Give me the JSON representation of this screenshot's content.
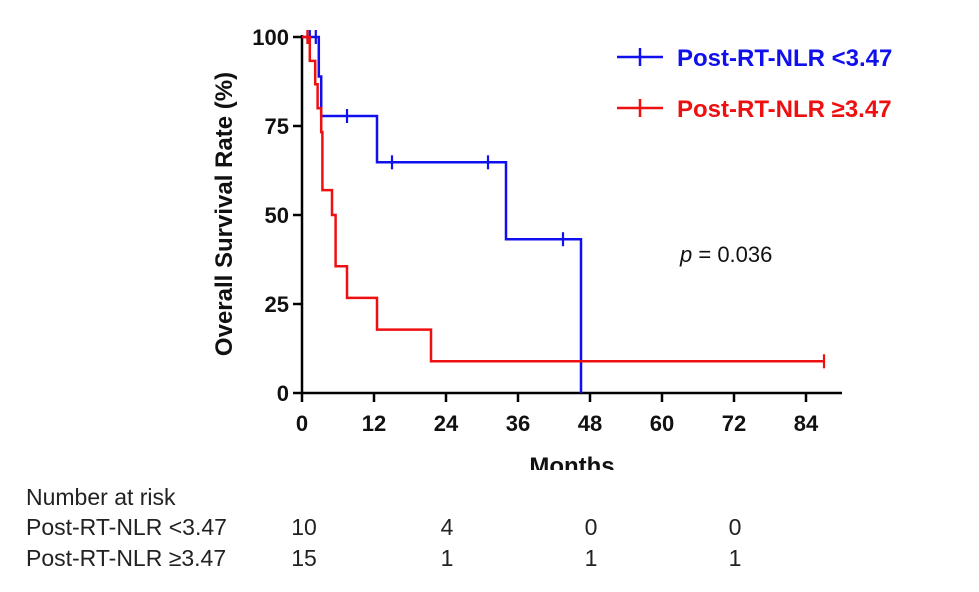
{
  "chart_data": {
    "type": "line",
    "subtype": "kaplan-meier",
    "xlabel": "Months",
    "ylabel": "Overall Survival Rate (%)",
    "xlim": [
      0,
      90
    ],
    "ylim": [
      0,
      100
    ],
    "xticks": [
      0,
      12,
      24,
      36,
      48,
      60,
      72,
      84
    ],
    "yticks": [
      0,
      25,
      50,
      75,
      100
    ],
    "legend_position": "top-right",
    "annotation": {
      "italic": "p",
      "rest": " = 0.036"
    },
    "series": [
      {
        "name": "Post-RT-NLR <3.47",
        "color": "#1010ee",
        "steps": [
          [
            0,
            100
          ],
          [
            2.8,
            100
          ],
          [
            2.8,
            88.9
          ],
          [
            3.2,
            88.9
          ],
          [
            3.2,
            77.8
          ],
          [
            12.5,
            77.8
          ],
          [
            12.5,
            64.8
          ],
          [
            34,
            64.8
          ],
          [
            34,
            43.2
          ],
          [
            46.5,
            43.2
          ],
          [
            46.5,
            0
          ]
        ],
        "censors": [
          [
            1.3,
            100
          ],
          [
            2.3,
            100
          ],
          [
            7.5,
            77.8
          ],
          [
            15,
            64.8
          ],
          [
            31,
            64.8
          ],
          [
            43.5,
            43.2
          ]
        ]
      },
      {
        "name": "Post-RT-NLR ≥3.47",
        "color": "#ee1010",
        "steps": [
          [
            0,
            100
          ],
          [
            1.3,
            100
          ],
          [
            1.3,
            93.3
          ],
          [
            2.2,
            93.3
          ],
          [
            2.2,
            86.7
          ],
          [
            2.6,
            86.7
          ],
          [
            2.6,
            80
          ],
          [
            3.2,
            80
          ],
          [
            3.2,
            73.3
          ],
          [
            3.4,
            73.3
          ],
          [
            3.4,
            57
          ],
          [
            5,
            57
          ],
          [
            5,
            50
          ],
          [
            5.6,
            50
          ],
          [
            5.6,
            35.6
          ],
          [
            7.5,
            35.6
          ],
          [
            7.5,
            26.7
          ],
          [
            12.5,
            26.7
          ],
          [
            12.5,
            17.8
          ],
          [
            21.5,
            17.8
          ],
          [
            21.5,
            8.9
          ],
          [
            87,
            8.9
          ]
        ],
        "censors": [
          [
            0.9,
            100
          ],
          [
            87,
            8.9
          ]
        ]
      }
    ],
    "risk_table": {
      "title": "Number at risk",
      "times": [
        0,
        24,
        48,
        72
      ],
      "rows": [
        {
          "label": "Post-RT-NLR <3.47",
          "values": [
            "10",
            "4",
            "0",
            "0"
          ]
        },
        {
          "label": "Post-RT-NLR ≥3.47",
          "values": [
            "15",
            "1",
            "1",
            "1"
          ]
        }
      ]
    }
  }
}
